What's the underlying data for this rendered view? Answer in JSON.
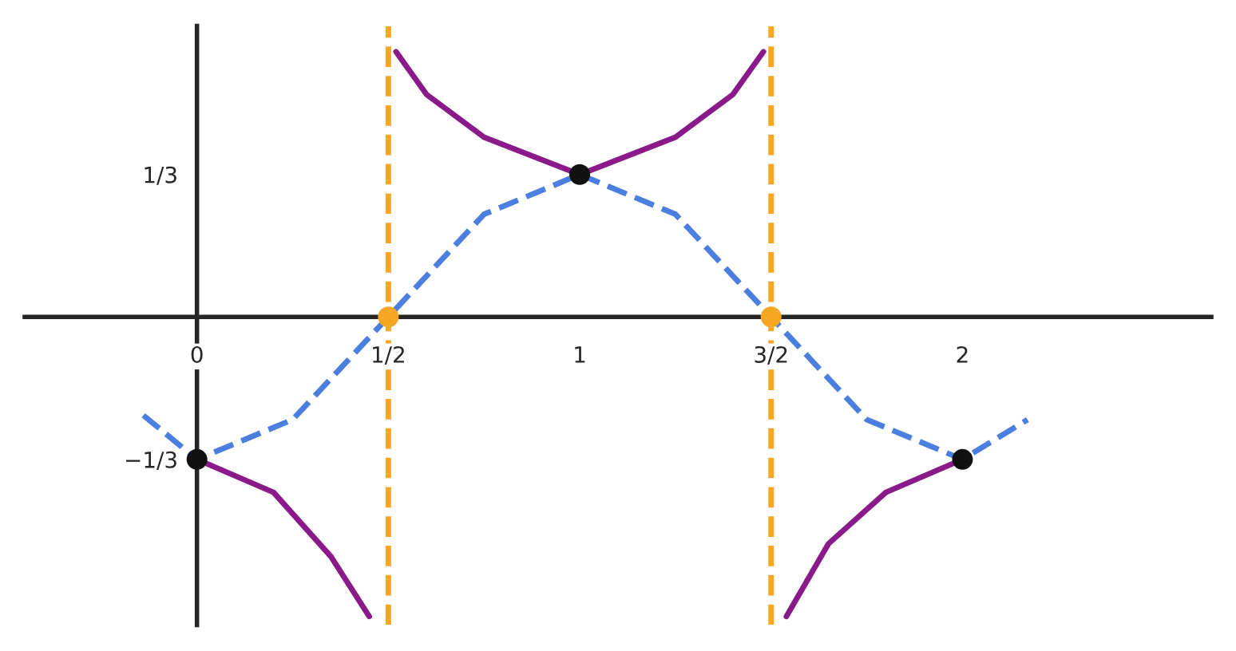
{
  "chart_data": {
    "type": "line",
    "xlim": [
      -0.45,
      2.65
    ],
    "ylim": [
      -0.72,
      0.68
    ],
    "xticks": [
      {
        "value": 0,
        "label": "0"
      },
      {
        "value": 0.5,
        "label": "1/2"
      },
      {
        "value": 1,
        "label": "1"
      },
      {
        "value": 1.5,
        "label": "3/2"
      },
      {
        "value": 2,
        "label": "2"
      }
    ],
    "yticks": [
      {
        "value": -0.333,
        "label": "−1/3"
      },
      {
        "value": 0.333,
        "label": "1/3"
      }
    ],
    "series": [
      {
        "color": "#4a7fe0",
        "line_style": "dashed",
        "x": [
          -0.14,
          0,
          0.25,
          0.5,
          0.75,
          1,
          1.25,
          1.5,
          1.75,
          2,
          2.17
        ],
        "values": [
          -0.23,
          -0.333,
          -0.24,
          0,
          0.24,
          0.333,
          0.24,
          0,
          -0.24,
          -0.333,
          -0.24
        ]
      },
      {
        "type": "line",
        "color": "#8a1a8a",
        "line_style": "solid",
        "x": [
          0,
          0.2,
          0.35,
          0.45,
          null,
          0.52,
          0.6,
          0.75,
          1,
          1.25,
          1.4,
          1.48,
          null,
          1.54,
          1.65,
          1.8,
          2
        ],
        "values": [
          -0.333,
          -0.41,
          -0.56,
          -0.7,
          null,
          0.62,
          0.52,
          0.42,
          0.333,
          0.42,
          0.52,
          0.62,
          null,
          -0.7,
          -0.53,
          -0.41,
          -0.333
        ]
      },
      {
        "type": "scatter",
        "color": "#111111",
        "marker": "circle",
        "x": [
          0,
          1,
          2
        ],
        "values": [
          -0.333,
          0.333,
          -0.333
        ]
      },
      {
        "type": "scatter",
        "color": "#f5a623",
        "marker": "circle",
        "x": [
          0.5,
          1.5
        ],
        "values": [
          0,
          0
        ]
      }
    ],
    "ref_lines": [
      {
        "axis": "x",
        "value": 0.5,
        "color": "#f5a623",
        "line_style": "dashed"
      },
      {
        "axis": "x",
        "value": 1.5,
        "color": "#f5a623",
        "line_style": "dashed"
      }
    ]
  }
}
